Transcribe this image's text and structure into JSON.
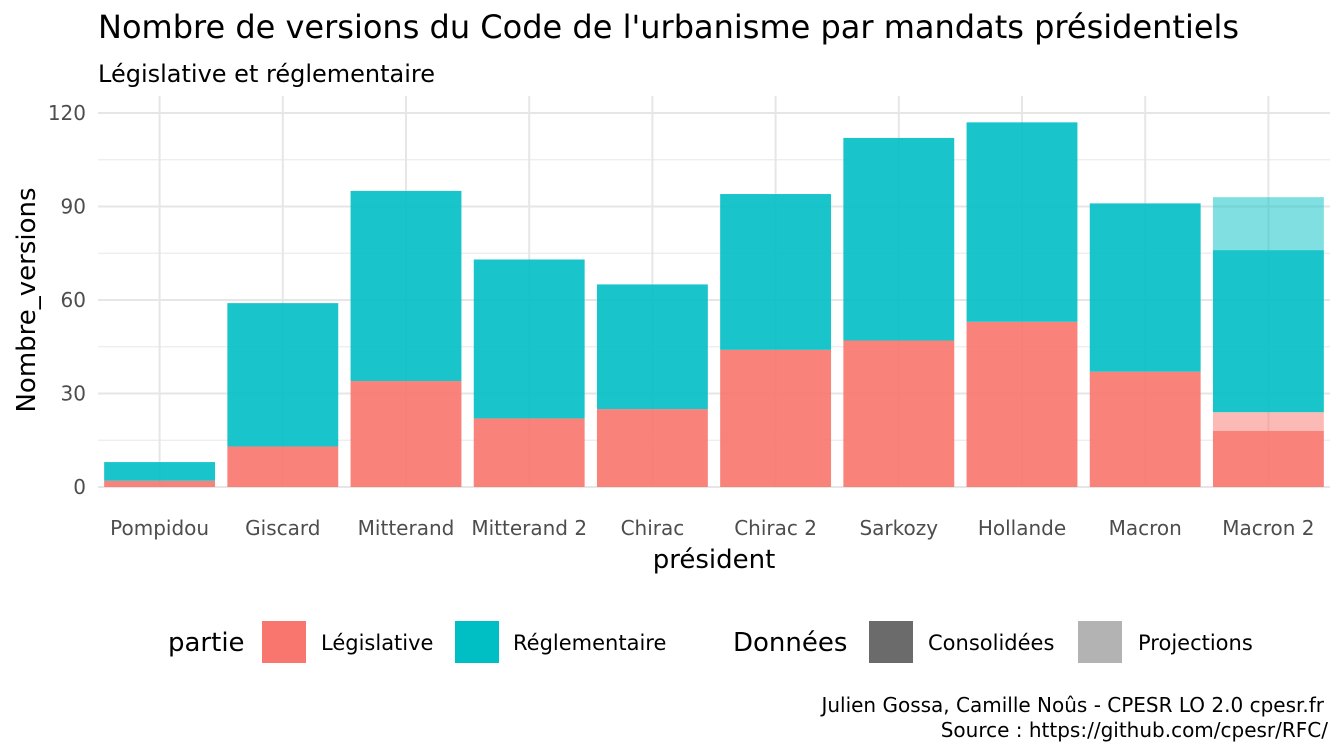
{
  "chart_data": {
    "type": "bar",
    "stacked": true,
    "title": "Nombre de versions du Code de l'urbanisme par mandats présidentiels",
    "subtitle": "Législative et réglementaire",
    "xlabel": "président",
    "ylabel": "Nombre_versions",
    "ylim": [
      0,
      120
    ],
    "yticks": [
      0,
      30,
      60,
      90,
      120
    ],
    "grid": true,
    "categories": [
      "Pompidou",
      "Giscard",
      "Mitterand",
      "Mitterand 2",
      "Chirac",
      "Chirac 2",
      "Sarkozy",
      "Hollande",
      "Macron",
      "Macron 2"
    ],
    "series": [
      {
        "name": "Législative",
        "donnees": "Consolidées",
        "values": [
          2,
          13,
          34,
          22,
          25,
          44,
          47,
          53,
          37,
          18
        ]
      },
      {
        "name": "Législative",
        "donnees": "Projections",
        "values": [
          0,
          0,
          0,
          0,
          0,
          0,
          0,
          0,
          0,
          6
        ]
      },
      {
        "name": "Réglementaire",
        "donnees": "Consolidées",
        "values": [
          6,
          46,
          61,
          51,
          40,
          50,
          65,
          64,
          54,
          52
        ]
      },
      {
        "name": "Réglementaire",
        "donnees": "Projections",
        "values": [
          0,
          0,
          0,
          0,
          0,
          0,
          0,
          0,
          0,
          17
        ]
      }
    ],
    "colors": {
      "Législative": "#F8766D",
      "Réglementaire": "#00BFC4",
      "consolidees_alpha": 0.9,
      "projections_alpha": 0.5
    },
    "legend": {
      "position": "bottom",
      "fill_title": "partie",
      "fill_items": [
        "Législative",
        "Réglementaire"
      ],
      "alpha_title": "Données",
      "alpha_items": [
        "Consolidées",
        "Projections"
      ],
      "alpha_swatch_colors": [
        "#6b6b6b",
        "#b3b3b3"
      ]
    },
    "caption": [
      "Julien Gossa, Camille Noûs - CPESR LO 2.0 cpesr.fr",
      "Source : https://github.com/cpesr/RFC/"
    ]
  }
}
